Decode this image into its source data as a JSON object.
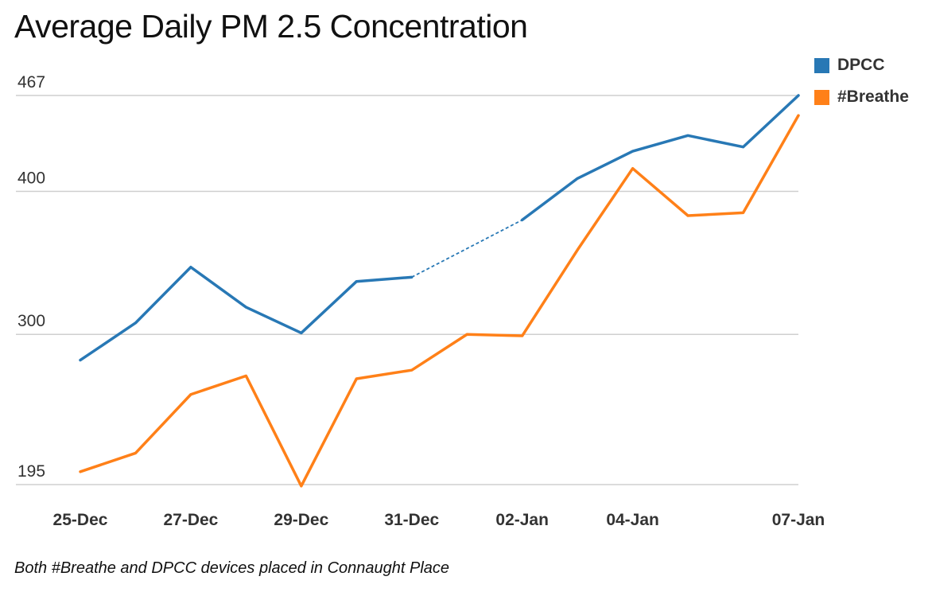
{
  "chart_data": {
    "type": "line",
    "title": "Average Daily PM 2.5 Concentration",
    "x": [
      "25-Dec",
      "26-Dec",
      "27-Dec",
      "28-Dec",
      "29-Dec",
      "30-Dec",
      "31-Dec",
      "01-Jan",
      "02-Jan",
      "03-Jan",
      "04-Jan",
      "05-Jan",
      "06-Jan",
      "07-Jan"
    ],
    "tick_labels": [
      "25-Dec",
      "27-Dec",
      "29-Dec",
      "31-Dec",
      "02-Jan",
      "04-Jan",
      "07-Jan"
    ],
    "y_ticks": [
      195,
      300,
      400,
      467
    ],
    "ylim": [
      195,
      467
    ],
    "xlabel": "",
    "ylabel": "",
    "grid": true,
    "legend_position": "top-right",
    "series": [
      {
        "name": "DPCC",
        "color": "#2878b5",
        "values": [
          282,
          308,
          347,
          319,
          301,
          337,
          340,
          null,
          380,
          409,
          428,
          439,
          431,
          467
        ],
        "dashed_gap": [
          6,
          8
        ]
      },
      {
        "name": "#Breathe",
        "color": "#ff8018",
        "values": [
          204,
          217,
          258,
          271,
          194,
          269,
          275,
          300,
          299,
          359,
          416,
          383,
          385,
          453
        ]
      }
    ],
    "annotation": "Both #Breathe and DPCC devices placed in Connaught Place"
  }
}
